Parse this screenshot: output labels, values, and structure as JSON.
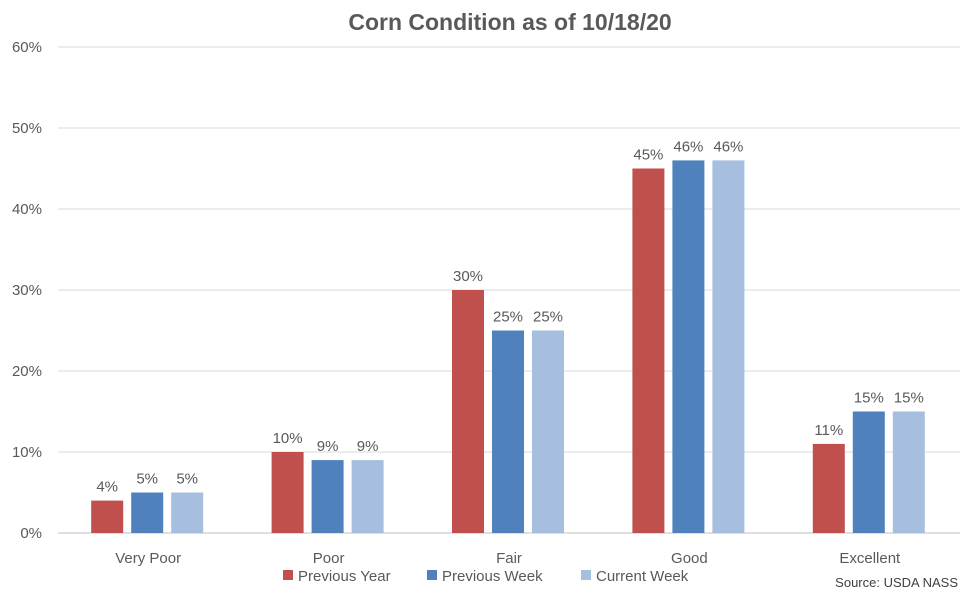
{
  "chart_data": {
    "type": "bar",
    "title": "Corn Condition as of 10/18/20",
    "xlabel": "",
    "ylabel": "",
    "ylim": [
      0,
      60
    ],
    "yticks": [
      "0%",
      "10%",
      "20%",
      "30%",
      "40%",
      "50%",
      "60%"
    ],
    "grid": true,
    "legend_position": "bottom",
    "categories": [
      "Very Poor",
      "Poor",
      "Fair",
      "Good",
      "Excellent"
    ],
    "series": [
      {
        "name": "Previous Year",
        "color": "#C0504D",
        "values": [
          4,
          10,
          30,
          45,
          11
        ]
      },
      {
        "name": "Previous Week",
        "color": "#4F81BD",
        "values": [
          5,
          9,
          25,
          46,
          15
        ]
      },
      {
        "name": "Current Week",
        "color": "#A7BFDE",
        "values": [
          5,
          9,
          25,
          46,
          15
        ]
      }
    ],
    "source": "Source: USDA NASS"
  }
}
